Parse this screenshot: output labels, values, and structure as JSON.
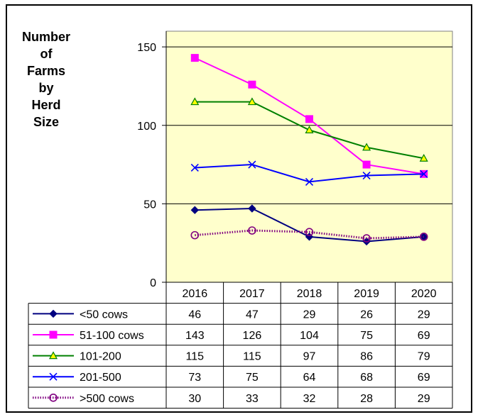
{
  "chart_data": {
    "type": "line",
    "title": "",
    "ylabel_lines": [
      "Number",
      "of",
      "Farms",
      "by",
      "Herd",
      "Size"
    ],
    "xlabel": "",
    "categories": [
      "2016",
      "2017",
      "2018",
      "2019",
      "2020"
    ],
    "ylim": [
      0,
      160
    ],
    "yticks": [
      "0",
      "50",
      "100",
      "150"
    ],
    "grid": true,
    "plot_background": "#ffffcc",
    "legend_placement": "data-table",
    "series": [
      {
        "name": "<50 cows",
        "values": [
          46,
          47,
          29,
          26,
          29
        ],
        "color": "#000080",
        "marker": "diamond"
      },
      {
        "name": "51-100 cows",
        "values": [
          143,
          126,
          104,
          75,
          69
        ],
        "color": "#ff00ff",
        "marker": "square"
      },
      {
        "name": "101-200",
        "values": [
          115,
          115,
          97,
          86,
          79
        ],
        "color": "#008000",
        "marker": "triangle"
      },
      {
        "name": "201-500",
        "values": [
          73,
          75,
          64,
          68,
          69
        ],
        "color": "#0000ff",
        "marker": "x"
      },
      {
        "name": ">500 cows",
        "values": [
          30,
          33,
          32,
          28,
          29
        ],
        "color": "#800080",
        "marker": "circle",
        "dotted": true
      }
    ]
  }
}
